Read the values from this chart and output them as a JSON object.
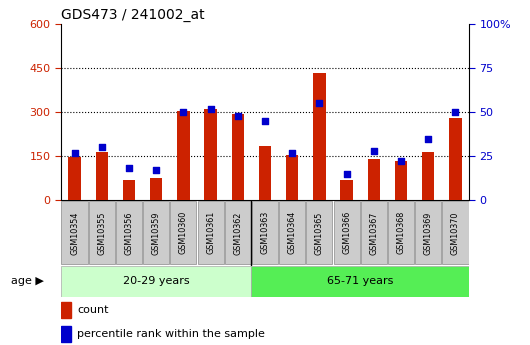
{
  "title": "GDS473 / 241002_at",
  "samples": [
    "GSM10354",
    "GSM10355",
    "GSM10356",
    "GSM10359",
    "GSM10360",
    "GSM10361",
    "GSM10362",
    "GSM10363",
    "GSM10364",
    "GSM10365",
    "GSM10366",
    "GSM10367",
    "GSM10368",
    "GSM10369",
    "GSM10370"
  ],
  "counts": [
    148,
    165,
    68,
    75,
    305,
    310,
    295,
    185,
    155,
    435,
    70,
    140,
    135,
    165,
    280
  ],
  "percentile_ranks": [
    27,
    30,
    18,
    17,
    50,
    52,
    48,
    45,
    27,
    55,
    15,
    28,
    22,
    35,
    50
  ],
  "group1_label": "20-29 years",
  "group2_label": "65-71 years",
  "group1_count": 7,
  "group2_count": 8,
  "left_ylim": [
    0,
    600
  ],
  "right_ylim": [
    0,
    100
  ],
  "left_yticks": [
    0,
    150,
    300,
    450,
    600
  ],
  "right_yticks": [
    0,
    25,
    50,
    75,
    100
  ],
  "bar_color": "#cc2200",
  "scatter_color": "#0000cc",
  "group1_bg": "#ccffcc",
  "group2_bg": "#55ee55",
  "xlabel_box_color": "#cccccc",
  "xlabel_box_edge": "#999999",
  "plot_bg": "#ffffff",
  "title_color": "#000000",
  "left_tick_color": "#cc2200",
  "right_tick_color": "#0000cc",
  "bar_width": 0.45,
  "legend_count_label": "count",
  "legend_percentile_label": "percentile rank within the sample"
}
